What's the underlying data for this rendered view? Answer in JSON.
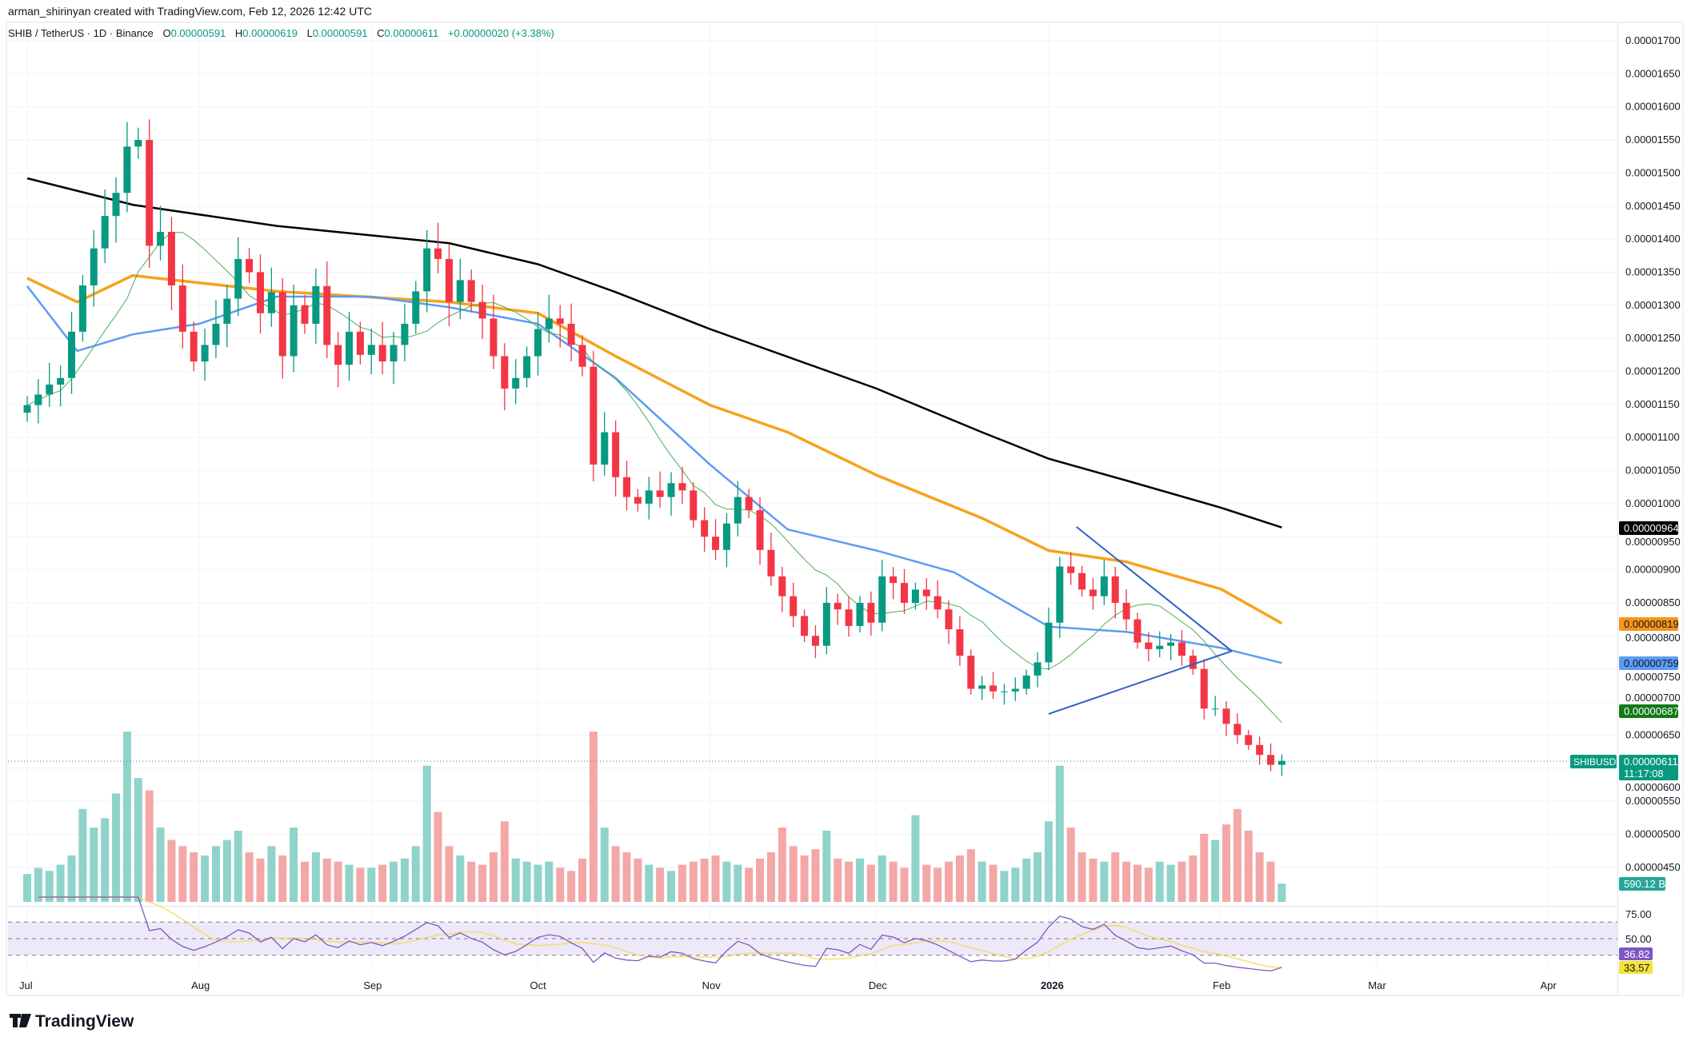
{
  "header": {
    "credit": "arman_shirinyan created with TradingView.com, Feb 12, 2026 12:42 UTC"
  },
  "legend": {
    "symbol": "SHIB / TetherUS · 1D · Binance",
    "open_label": "O",
    "open": "0.00000591",
    "high_label": "H",
    "high": "0.00000619",
    "low_label": "L",
    "low": "0.00000591",
    "close_label": "C",
    "close": "0.00000611",
    "change": "+0.00000020 (+3.38%)"
  },
  "price_axis": {
    "ticks": [
      "0.00001700",
      "0.00001650",
      "0.00001600",
      "0.00001550",
      "0.00001500",
      "0.00001450",
      "0.00001400",
      "0.00001350",
      "0.00001300",
      "0.00001250",
      "0.00001200",
      "0.00001150",
      "0.00001100",
      "0.00001050",
      "0.00001000",
      "0.00000950",
      "0.00000900",
      "0.00000850",
      "0.00000800",
      "0.00000750",
      "0.00000700",
      "0.00000650",
      "0.00000600",
      "0.00000550",
      "0.00000500",
      "0.00000450"
    ],
    "hidden_ticks": [
      "0.00000750",
      "0.00000600"
    ]
  },
  "markers": {
    "ma_black": {
      "value": "0.00000964",
      "color": "#000000"
    },
    "ma_orange": {
      "value": "0.00000819",
      "color": "#f7931a"
    },
    "ma_blue": {
      "value": "0.00000759",
      "color": "#5b9cf6"
    },
    "ma_green": {
      "value": "0.00000687",
      "color": "#137a1a"
    },
    "last": {
      "symbol": "SHIBUSDT",
      "value": "0.00000611",
      "countdown": "11:17:08",
      "color": "#089981"
    },
    "volume": {
      "value": "590.12 B",
      "color": "#26a69a"
    }
  },
  "rsi": {
    "ticks": [
      "75.00",
      "50.00"
    ],
    "rsi_value": "36.82",
    "rsi_ma_value": "33.57",
    "rsi_color": "#7e57c2",
    "ma_color": "#f5d74a"
  },
  "time_axis": {
    "labels": [
      {
        "text": "Jul",
        "date": "2025-07-01"
      },
      {
        "text": "Aug",
        "date": "2025-08-01"
      },
      {
        "text": "Sep",
        "date": "2025-09-01"
      },
      {
        "text": "Oct",
        "date": "2025-10-01"
      },
      {
        "text": "Nov",
        "date": "2025-11-01"
      },
      {
        "text": "Dec",
        "date": "2025-12-01"
      },
      {
        "text": "2026",
        "date": "2026-01-01"
      },
      {
        "text": "Feb",
        "date": "2026-02-01"
      },
      {
        "text": "Mar",
        "date": "2026-03-01"
      },
      {
        "text": "Apr",
        "date": "2026-04-01"
      }
    ]
  },
  "brand": {
    "logo_text": "TradingView"
  },
  "chart_data": {
    "type": "candlestick",
    "symbol": "SHIBUSDT",
    "timeframe": "1D",
    "ylim": [
      4.2e-06,
      1.72e-05
    ],
    "colors": {
      "up": "#089981",
      "down": "#f23645",
      "vol_up": "#8fd3cb",
      "vol_down": "#f4a7a7"
    },
    "closes": [
      1149,
      1165,
      1180,
      1190,
      1260,
      1330,
      1386,
      1435,
      1470,
      1540,
      1550,
      1390,
      1411,
      1330,
      1260,
      1215,
      1240,
      1272,
      1310,
      1370,
      1350,
      1288,
      1320,
      1223,
      1300,
      1272,
      1329,
      1240,
      1210,
      1260,
      1225,
      1240,
      1215,
      1240,
      1272,
      1321,
      1386,
      1370,
      1305,
      1338,
      1305,
      1280,
      1223,
      1174,
      1190,
      1223,
      1264,
      1280,
      1272,
      1240,
      1207,
      1059,
      1108,
      1040,
      1010,
      1000,
      1020,
      1010,
      1031,
      1020,
      975,
      950,
      930,
      970,
      1010,
      990,
      930,
      890,
      860,
      830,
      800,
      785,
      850,
      840,
      815,
      850,
      820,
      890,
      880,
      850,
      870,
      860,
      840,
      810,
      770,
      720,
      725,
      716,
      716,
      720,
      740,
      760,
      820,
      905,
      895,
      870,
      860,
      890,
      850,
      825,
      790,
      780,
      785,
      790,
      770,
      750,
      690,
      690,
      667,
      650,
      635,
      620,
      605,
      611
    ],
    "close_unit": "1e-8 USDT",
    "volumes_billion": [
      900,
      1100,
      1000,
      1200,
      1500,
      3000,
      2400,
      2700,
      3500,
      5500,
      4000,
      3600,
      2400,
      2000,
      1800,
      1600,
      1500,
      1800,
      2000,
      2300,
      1600,
      1400,
      1800,
      1500,
      2400,
      1300,
      1600,
      1400,
      1300,
      1200,
      1100,
      1100,
      1200,
      1300,
      1400,
      1800,
      4400,
      2900,
      1800,
      1500,
      1300,
      1200,
      1600,
      2600,
      1400,
      1300,
      1200,
      1300,
      1100,
      1000,
      1400,
      5500,
      2400,
      1800,
      1600,
      1400,
      1200,
      1100,
      1000,
      1200,
      1300,
      1400,
      1500,
      1300,
      1200,
      1100,
      1400,
      1600,
      2400,
      1800,
      1500,
      1700,
      2300,
      1400,
      1300,
      1400,
      1200,
      1500,
      1300,
      1100,
      2800,
      1200,
      1100,
      1300,
      1500,
      1700,
      1300,
      1200,
      1000,
      1100,
      1400,
      1600,
      2600,
      4400,
      2400,
      1600,
      1400,
      1300,
      1600,
      1300,
      1200,
      1100,
      1300,
      1200,
      1300,
      1500,
      2200,
      2000,
      2500,
      3000,
      2300,
      1600,
      1300,
      590
    ],
    "first_date": "2025-07-01",
    "last_date": "2026-02-12",
    "moving_averages": [
      {
        "color": "#000000",
        "points": [
          [
            "2025-07-01",
            1.492e-05
          ],
          [
            "2025-07-20",
            1.452e-05
          ],
          [
            "2025-08-15",
            1.42e-05
          ],
          [
            "2025-09-15",
            1.394e-05
          ],
          [
            "2025-10-01",
            1.362e-05
          ],
          [
            "2025-10-15",
            1.32e-05
          ],
          [
            "2025-11-01",
            1.264e-05
          ],
          [
            "2025-12-01",
            1.174e-05
          ],
          [
            "2025-12-20",
            1.108e-05
          ],
          [
            "2026-01-01",
            1.068e-05
          ],
          [
            "2026-01-15",
            1.035e-05
          ],
          [
            "2026-02-01",
            9.94e-06
          ],
          [
            "2026-02-12",
            9.64e-06
          ]
        ]
      },
      {
        "color": "#f7a21b",
        "points": [
          [
            "2025-07-01",
            1.341e-05
          ],
          [
            "2025-07-10",
            1.305e-05
          ],
          [
            "2025-07-20",
            1.345e-05
          ],
          [
            "2025-08-15",
            1.321e-05
          ],
          [
            "2025-09-15",
            1.305e-05
          ],
          [
            "2025-10-01",
            1.288e-05
          ],
          [
            "2025-10-15",
            1.223e-05
          ],
          [
            "2025-11-01",
            1.149e-05
          ],
          [
            "2025-11-15",
            1.108e-05
          ],
          [
            "2025-12-01",
            1.043e-05
          ],
          [
            "2025-12-20",
            9.78e-06
          ],
          [
            "2026-01-01",
            9.29e-06
          ],
          [
            "2026-01-15",
            9.12e-06
          ],
          [
            "2026-02-01",
            8.71e-06
          ],
          [
            "2026-02-12",
            8.19e-06
          ]
        ]
      },
      {
        "color": "#5b9cf6",
        "points": [
          [
            "2025-07-01",
            1.329e-05
          ],
          [
            "2025-07-10",
            1.231e-05
          ],
          [
            "2025-07-20",
            1.256e-05
          ],
          [
            "2025-08-01",
            1.272e-05
          ],
          [
            "2025-08-15",
            1.313e-05
          ],
          [
            "2025-09-01",
            1.313e-05
          ],
          [
            "2025-09-15",
            1.297e-05
          ],
          [
            "2025-10-01",
            1.272e-05
          ],
          [
            "2025-10-15",
            1.19e-05
          ],
          [
            "2025-11-01",
            1.059e-05
          ],
          [
            "2025-11-15",
            9.61e-06
          ],
          [
            "2025-12-01",
            9.29e-06
          ],
          [
            "2025-12-15",
            8.96e-06
          ],
          [
            "2026-01-01",
            8.14e-06
          ],
          [
            "2026-01-15",
            8.06e-06
          ],
          [
            "2026-02-01",
            7.82e-06
          ],
          [
            "2026-02-12",
            7.59e-06
          ]
        ]
      }
    ],
    "trendlines": [
      {
        "color": "#2f5fc4",
        "from": [
          "2026-01-06",
          9.65e-06
        ],
        "to": [
          "2026-02-03",
          7.77e-06
        ]
      },
      {
        "color": "#2f5fc4",
        "from": [
          "2026-01-01",
          6.82e-06
        ],
        "to": [
          "2026-02-03",
          7.77e-06
        ]
      }
    ]
  }
}
